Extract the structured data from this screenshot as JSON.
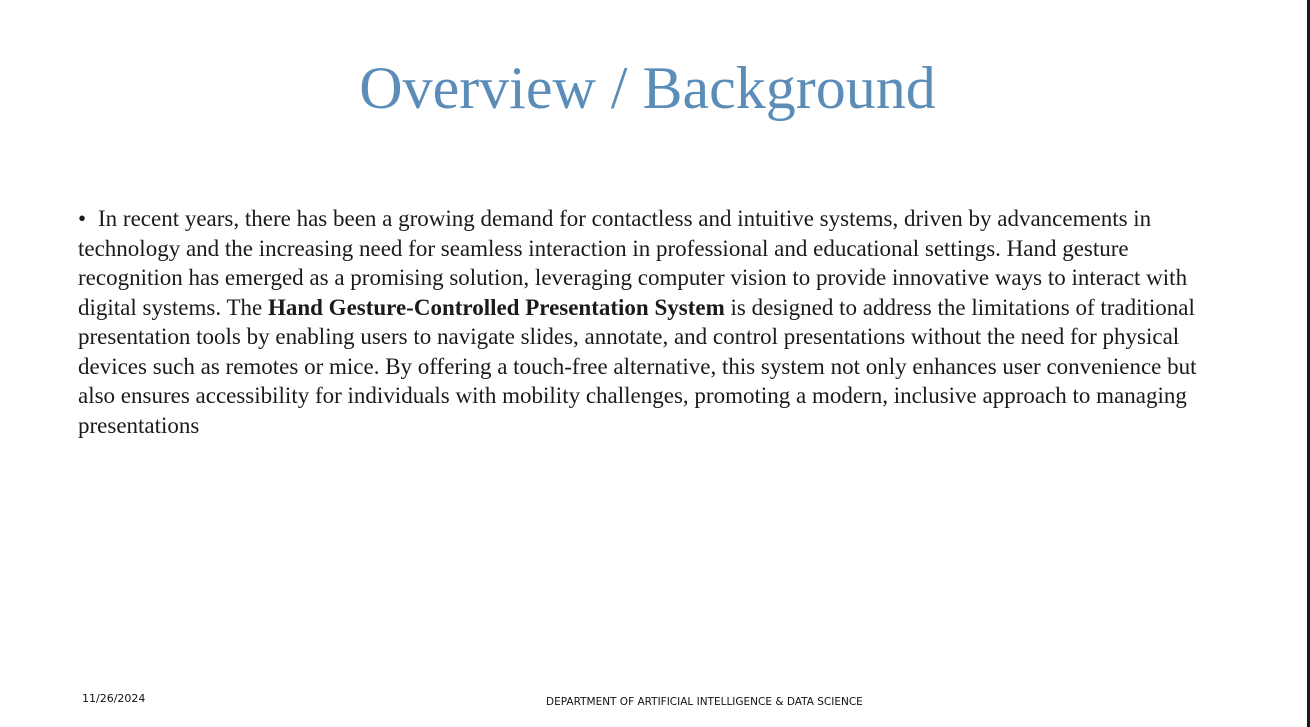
{
  "slide": {
    "title": "Overview / Background",
    "bullet_symbol": "•",
    "paragraph": {
      "before_bold": "In recent years, there has been a growing demand for contactless and intuitive systems, driven by advancements in technology and the increasing need for seamless interaction in professional and educational settings. Hand gesture recognition has emerged as a promising solution, leveraging computer vision to provide innovative ways to interact with digital systems. The ",
      "bold": "Hand Gesture-Controlled Presentation System",
      "after_bold": " is designed to address the limitations of traditional presentation tools by enabling users to navigate slides, annotate, and control presentations without the need for physical devices such as remotes or mice. By offering a touch-free alternative, this system not only enhances user convenience but also ensures accessibility for individuals with mobility challenges, promoting a modern, inclusive approach to managing presentations"
    },
    "footer": {
      "date": "11/26/2024",
      "department": "DEPARTMENT OF ARTIFICIAL INTELLIGENCE & DATA SCIENCE"
    },
    "colors": {
      "title": "#5b8db8",
      "text": "#1a1a1a",
      "background": "#ffffff"
    }
  }
}
